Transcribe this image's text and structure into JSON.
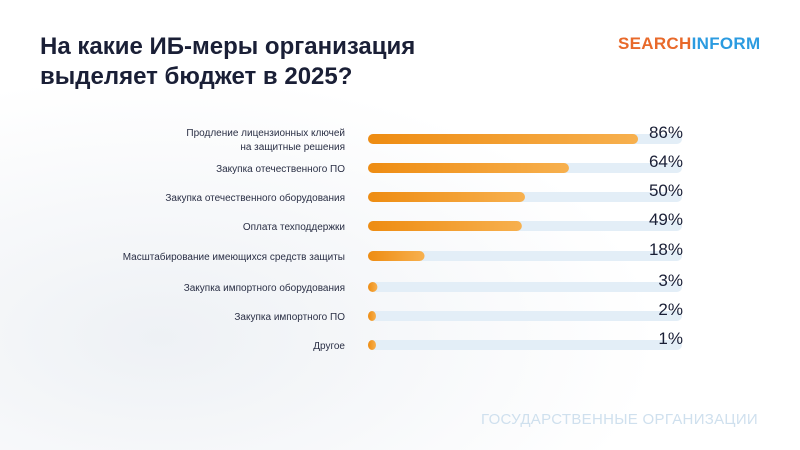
{
  "title": "На какие ИБ-меры организация выделяет бюджет в 2025?",
  "logo": {
    "part1": "SEARCH",
    "part2": "INFORM"
  },
  "footer": "ГОСУДАРСТВЕННЫЕ ОРГАНИЗАЦИИ",
  "colors": {
    "bar": "#f29a1f",
    "track": "#e3eef7",
    "text": "#1a1f36"
  },
  "chart_data": {
    "type": "bar",
    "orientation": "horizontal",
    "categories": [
      [
        "Продление лицензионных ключей",
        "на защитные решения"
      ],
      [
        "Закупка отечественного ПО"
      ],
      [
        "Закупка отечественного оборудования"
      ],
      [
        "Оплата техподдержки"
      ],
      [
        "Масштабирование имеющихся средств защиты"
      ],
      [
        "Закупка импортного оборудования"
      ],
      [
        "Закупка импортного ПО"
      ],
      [
        "Другое"
      ]
    ],
    "values": [
      86,
      64,
      50,
      49,
      18,
      3,
      2,
      1
    ],
    "labels": [
      "86%",
      "64%",
      "50%",
      "49%",
      "18%",
      "3%",
      "2%",
      "1%"
    ],
    "xlim": [
      0,
      100
    ],
    "grid": false
  }
}
